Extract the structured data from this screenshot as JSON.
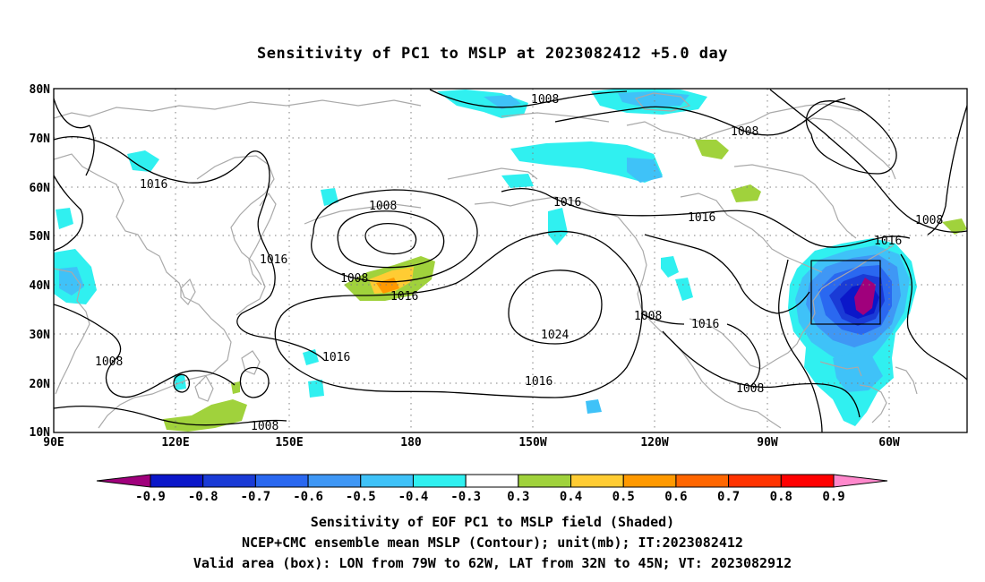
{
  "title": "Sensitivity of PC1 to MSLP at 2023082412 +5.0 day",
  "lat_labels": [
    "80N",
    "70N",
    "60N",
    "50N",
    "40N",
    "30N",
    "20N",
    "10N"
  ],
  "lon_labels": [
    "90E",
    "120E",
    "150E",
    "180",
    "150W",
    "120W",
    "90W",
    "60W"
  ],
  "contour_labels": [
    "1008",
    "1008",
    "1016",
    "1016",
    "1008",
    "1008",
    "1016",
    "1008",
    "1016",
    "1016",
    "1016",
    "1016",
    "1024",
    "1008",
    "1016",
    "1016",
    "1008",
    "1008",
    "1008"
  ],
  "colorbar": {
    "labels": [
      "-0.9",
      "-0.8",
      "-0.7",
      "-0.6",
      "-0.5",
      "-0.4",
      "-0.3",
      "0.3",
      "0.4",
      "0.5",
      "0.6",
      "0.7",
      "0.8",
      "0.9"
    ],
    "colors": [
      "#a0007c",
      "#0b17c9",
      "#1a3bd6",
      "#2a68f0",
      "#3f97f5",
      "#3fc2f8",
      "#30f0f0",
      "#ffffff",
      "#a0d23c",
      "#ffcc33",
      "#ff9900",
      "#ff6600",
      "#ff3300",
      "#ff0000",
      "#ff88cc"
    ]
  },
  "valid_box": {
    "lon_min": "79W",
    "lon_max": "62W",
    "lat_min": "32N",
    "lat_max": "45N"
  },
  "captions": [
    "Sensitivity of EOF PC1 to MSLP field (Shaded)",
    "NCEP+CMC ensemble mean MSLP (Contour); unit(mb); IT:2023082412",
    "Valid area (box): LON from 79W to 62W, LAT from 32N to 45N; VT: 2023082912"
  ]
}
